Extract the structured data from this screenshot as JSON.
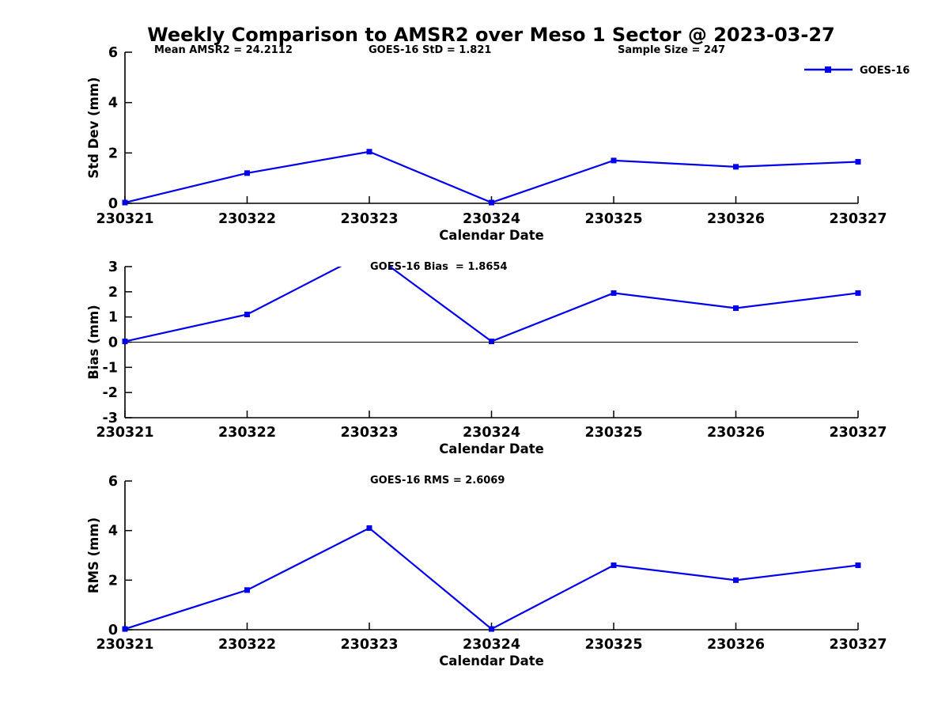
{
  "title": "Weekly Comparison to AMSR2 over Meso 1 Sector @ 2023-03-27",
  "legend": {
    "label": "GOES-16",
    "color": "#0000EE",
    "marker": "square",
    "position": "top-right"
  },
  "colors": {
    "line": "#0000EE",
    "axis": "#000000",
    "text": "#000000",
    "background": "#FFFFFF",
    "zero_line": "#000000"
  },
  "chart_data": [
    {
      "type": "line",
      "subplot": 1,
      "annotations": [
        "Mean AMSR2 = 24.2112",
        "GOES-16 StD = 1.821",
        "Sample Size = 247"
      ],
      "categories": [
        "230321",
        "230322",
        "230323",
        "230324",
        "230325",
        "230326",
        "230327"
      ],
      "series": [
        {
          "name": "GOES-16",
          "values": [
            0.03,
            1.2,
            2.05,
            0.03,
            1.7,
            1.45,
            1.65
          ]
        }
      ],
      "xlabel": "Calendar Date",
      "ylabel": "Std Dev (mm)",
      "ylim": [
        0,
        6
      ],
      "yticks": [
        0,
        2,
        4,
        6
      ],
      "grid": false,
      "zero_line": false,
      "show_legend": true
    },
    {
      "type": "line",
      "subplot": 2,
      "annotations": [
        "GOES-16 Bias  = 1.8654"
      ],
      "categories": [
        "230321",
        "230322",
        "230323",
        "230324",
        "230325",
        "230326",
        "230327"
      ],
      "series": [
        {
          "name": "GOES-16",
          "values": [
            0.03,
            1.1,
            3.6,
            0.03,
            1.95,
            1.35,
            1.95
          ]
        }
      ],
      "xlabel": "Calendar Date",
      "ylabel": "Bias (mm)",
      "ylim": [
        -3,
        3
      ],
      "yticks": [
        -3,
        -2,
        -1,
        0,
        1,
        2,
        3
      ],
      "grid": false,
      "zero_line": true,
      "show_legend": false
    },
    {
      "type": "line",
      "subplot": 3,
      "annotations": [
        "GOES-16 RMS = 2.6069"
      ],
      "categories": [
        "230321",
        "230322",
        "230323",
        "230324",
        "230325",
        "230326",
        "230327"
      ],
      "series": [
        {
          "name": "GOES-16",
          "values": [
            0.03,
            1.6,
            4.1,
            0.03,
            2.6,
            2.0,
            2.6
          ]
        }
      ],
      "xlabel": "Calendar Date",
      "ylabel": "RMS (mm)",
      "ylim": [
        0,
        6
      ],
      "yticks": [
        0,
        2,
        4,
        6
      ],
      "grid": false,
      "zero_line": false,
      "show_legend": false
    }
  ]
}
